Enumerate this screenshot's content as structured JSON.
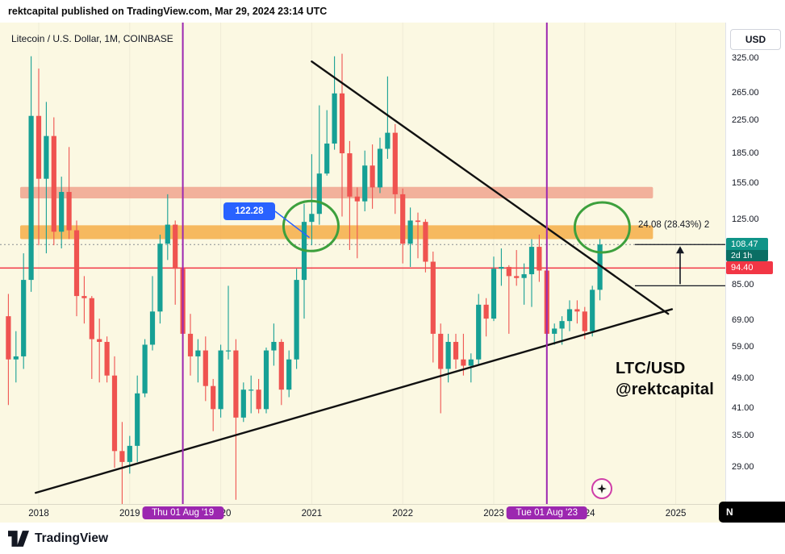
{
  "header": {
    "caption": "rektcapital published on TradingView.com, Mar 29, 2024 23:14 UTC"
  },
  "chart": {
    "title": "Litecoin / U.S. Dollar, 1M, COINBASE"
  },
  "axes": {
    "currency_button": "USD",
    "price_ticks": [
      {
        "label": "325.00",
        "value": 325
      },
      {
        "label": "265.00",
        "value": 265
      },
      {
        "label": "225.00",
        "value": 225
      },
      {
        "label": "185.00",
        "value": 185
      },
      {
        "label": "155.00",
        "value": 155
      },
      {
        "label": "125.00",
        "value": 125
      },
      {
        "label": "85.00",
        "value": 85
      },
      {
        "label": "69.00",
        "value": 69
      },
      {
        "label": "59.00",
        "value": 59
      },
      {
        "label": "49.00",
        "value": 49
      },
      {
        "label": "41.00",
        "value": 41
      },
      {
        "label": "35.00",
        "value": 35
      },
      {
        "label": "29.00",
        "value": 29
      }
    ],
    "time_ticks": [
      {
        "label": "2018",
        "month": 0
      },
      {
        "label": "2019",
        "month": 12
      },
      {
        "label": "2020",
        "month": 24
      },
      {
        "label": "2021",
        "month": 36
      },
      {
        "label": "2022",
        "month": 48
      },
      {
        "label": "2023",
        "month": 60
      },
      {
        "label": "2024",
        "month": 72
      },
      {
        "label": "2025",
        "month": 84
      }
    ],
    "event_badges": [
      {
        "label": "Thu 01 Aug '19",
        "month": 19
      },
      {
        "label": "Tue 01 Aug '23",
        "month": 67
      }
    ]
  },
  "badges": {
    "last": {
      "label": "108.47",
      "countdown": "2d 1h",
      "value": 108.47,
      "bg": "#0f9488",
      "countdown_bg": "#0a6e64"
    },
    "alert": {
      "label": "94.40",
      "value": 94.4,
      "bg": "#f23645"
    }
  },
  "annotations": {
    "callout": {
      "label": "122.28",
      "color": "#2962ff",
      "target_month": 35.7,
      "target_price": 113
    },
    "measure": {
      "label": "24.08 (28.43%) 2",
      "from_price": 85,
      "to_price": 108.47
    },
    "watermark": {
      "line1": "LTC/USD",
      "line2": "@rektcapital"
    },
    "corner_label": "N"
  },
  "footer": {
    "brand": "TradingView"
  },
  "chart_data": {
    "type": "candlestick",
    "symbol": "LTC/USD",
    "exchange": "COINBASE",
    "interval": "1M",
    "scale": "log",
    "title": "Litecoin / U.S. Dollar, 1M, COINBASE",
    "first_candle_month": "2017-09",
    "last_candle_month": "2024-03",
    "first_candle_month_offset": -4,
    "last_price": 108.47,
    "ylim": [
      24,
      400
    ],
    "colors": {
      "background": "#fbf8e2",
      "up": "#16a095",
      "down": "#ef5350",
      "trendline": "#111111",
      "event_line": "#9c27b0",
      "support_line": "#f23645",
      "last_price_line": "#8a8d93",
      "circle": "#3da03d",
      "callout": "#2962ff"
    },
    "levels": {
      "support": 94.4,
      "last": 108.47
    },
    "zones": [
      {
        "name": "resistance-zone-upper",
        "price_range": [
          142.5,
          152.5
        ],
        "from_month": -2.45,
        "to_month": 81,
        "color": "#f0a58e",
        "opacity": 0.85
      },
      {
        "name": "resistance-zone-lower",
        "price_range": [
          112,
          121.5
        ],
        "from_month": -2.45,
        "to_month": 81,
        "color": "#f5a93e",
        "opacity": 0.8
      }
    ],
    "trendlines": [
      {
        "name": "descending-trendline",
        "from": [
          36,
          320
        ],
        "to": [
          83,
          72
        ]
      },
      {
        "name": "ascending-trendline",
        "from": [
          -0.4,
          25
        ],
        "to": [
          83.5,
          74
        ]
      }
    ],
    "vertical_event_lines": [
      19,
      67
    ],
    "highlight_circles": [
      {
        "month": 35.9,
        "price": 121
      },
      {
        "month": 74.3,
        "price": 120
      }
    ],
    "candles": [
      [
        71,
        81,
        42,
        55
      ],
      [
        55,
        65,
        48,
        56
      ],
      [
        56,
        103,
        52,
        88
      ],
      [
        88,
        330,
        82,
        232
      ],
      [
        232,
        307,
        108,
        160
      ],
      [
        160,
        252,
        103,
        206
      ],
      [
        206,
        230,
        108,
        117
      ],
      [
        117,
        162,
        106,
        148
      ],
      [
        148,
        193,
        112,
        118
      ],
      [
        118,
        125,
        71,
        80
      ],
      [
        80,
        90,
        68,
        79
      ],
      [
        79,
        80,
        49,
        62
      ],
      [
        62,
        70,
        48,
        61
      ],
      [
        61,
        63,
        48,
        50
      ],
      [
        50,
        56,
        29,
        32
      ],
      [
        32,
        38,
        22,
        30
      ],
      [
        30,
        35,
        28,
        33
      ],
      [
        33,
        50,
        30,
        45
      ],
      [
        45,
        62,
        44,
        60
      ],
      [
        60,
        90,
        58,
        73
      ],
      [
        73,
        115,
        68,
        109
      ],
      [
        109,
        146,
        99,
        122
      ],
      [
        122,
        125,
        76,
        94
      ],
      [
        94,
        98,
        62,
        64
      ],
      [
        64,
        72,
        50,
        56
      ],
      [
        56,
        62,
        48,
        58
      ],
      [
        58,
        63,
        43,
        47
      ],
      [
        47,
        49,
        36,
        41
      ],
      [
        41,
        60,
        39,
        58
      ],
      [
        58,
        85,
        55,
        58
      ],
      [
        58,
        62,
        24,
        39
      ],
      [
        39,
        48,
        38,
        46
      ],
      [
        46,
        50,
        40,
        46
      ],
      [
        46,
        49,
        40,
        41
      ],
      [
        41,
        59,
        40,
        58
      ],
      [
        58,
        68,
        53,
        61
      ],
      [
        61,
        62,
        42,
        46
      ],
      [
        46,
        58,
        44,
        55
      ],
      [
        55,
        94,
        52,
        88
      ],
      [
        88,
        138,
        70,
        124
      ],
      [
        124,
        185,
        108,
        130
      ],
      [
        130,
        247,
        122,
        165
      ],
      [
        165,
        240,
        163,
        197
      ],
      [
        197,
        330,
        190,
        265
      ],
      [
        265,
        335,
        128,
        186
      ],
      [
        186,
        200,
        105,
        144
      ],
      [
        144,
        152,
        100,
        140
      ],
      [
        140,
        189,
        132,
        173
      ],
      [
        173,
        196,
        134,
        152
      ],
      [
        152,
        204,
        147,
        191
      ],
      [
        191,
        293,
        180,
        210
      ],
      [
        210,
        221,
        130,
        146
      ],
      [
        146,
        151,
        97,
        109
      ],
      [
        109,
        135,
        95,
        125
      ],
      [
        125,
        131,
        100,
        124
      ],
      [
        124,
        126,
        92,
        98
      ],
      [
        98,
        104,
        54,
        64
      ],
      [
        64,
        68,
        40,
        52
      ],
      [
        52,
        64,
        48,
        61
      ],
      [
        61,
        64,
        52,
        55
      ],
      [
        55,
        64,
        50,
        53
      ],
      [
        53,
        57,
        48,
        55
      ],
      [
        55,
        81,
        53,
        76
      ],
      [
        76,
        79,
        63,
        70
      ],
      [
        70,
        101,
        69,
        94
      ],
      [
        94,
        106,
        85,
        95
      ],
      [
        95,
        96,
        64,
        90
      ],
      [
        90,
        105,
        85,
        89
      ],
      [
        89,
        97,
        76,
        91
      ],
      [
        91,
        112,
        75,
        107
      ],
      [
        107,
        115,
        87,
        93
      ],
      [
        93,
        95,
        62,
        64
      ],
      [
        64,
        68,
        60,
        66
      ],
      [
        66,
        71,
        60,
        69
      ],
      [
        69,
        78,
        65,
        74
      ],
      [
        74,
        78,
        68,
        73
      ],
      [
        73,
        75,
        62,
        65
      ],
      [
        65,
        85,
        63,
        83
      ],
      [
        83,
        112,
        78,
        108.47
      ]
    ]
  }
}
